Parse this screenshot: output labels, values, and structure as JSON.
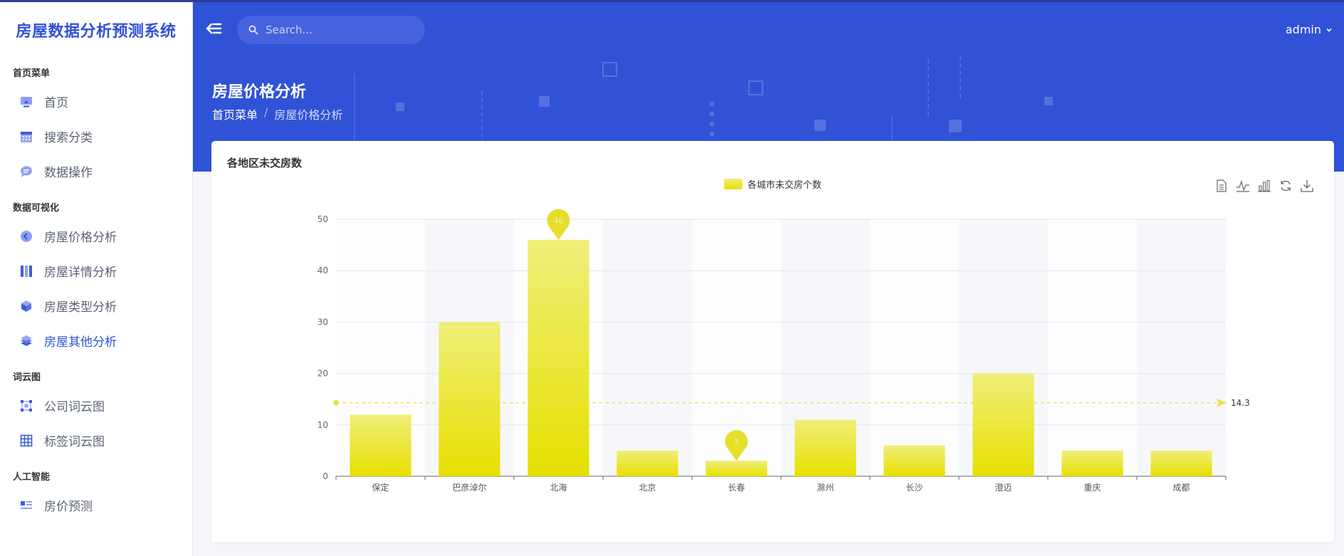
{
  "sidebar": {
    "brand": "房屋数据分析预测系统",
    "sections": [
      {
        "title": "首页菜单",
        "items": [
          {
            "label": "首页",
            "icon": "monitor-icon"
          },
          {
            "label": "搜索分类",
            "icon": "calendar-icon"
          },
          {
            "label": "数据操作",
            "icon": "chat-bubble-icon"
          }
        ]
      },
      {
        "title": "数据可视化",
        "items": [
          {
            "label": "房屋价格分析",
            "icon": "arrow-circle-icon"
          },
          {
            "label": "房屋详情分析",
            "icon": "columns-icon"
          },
          {
            "label": "房屋类型分析",
            "icon": "cube-icon"
          },
          {
            "label": "房屋其他分析",
            "icon": "layers-icon",
            "active": true
          }
        ]
      },
      {
        "title": "词云图",
        "items": [
          {
            "label": "公司词云图",
            "icon": "nodes-icon"
          },
          {
            "label": "标签词云图",
            "icon": "grid-icon"
          }
        ]
      },
      {
        "title": "人工智能",
        "items": [
          {
            "label": "房价预测",
            "icon": "list-icon"
          }
        ]
      }
    ]
  },
  "header": {
    "search_placeholder": "Search...",
    "user": "admin",
    "page_title": "房屋价格分析",
    "breadcrumb": [
      "首页菜单",
      "房屋价格分析"
    ]
  },
  "card": {
    "title": "各地区未交房数",
    "legend": "各城市未交房个数"
  },
  "colors": {
    "accent": "#3052d6",
    "bar_top": "#f0ee7a",
    "bar_bottom": "#e6e000"
  },
  "chart_data": {
    "type": "bar",
    "categories": [
      "保定",
      "巴彦淖尔",
      "北海",
      "北京",
      "长春",
      "滁州",
      "长沙",
      "澄迈",
      "重庆",
      "成都"
    ],
    "series": [
      {
        "name": "各城市未交房个数",
        "values": [
          12,
          30,
          46,
          5,
          3,
          11,
          6,
          20,
          5,
          5
        ]
      }
    ],
    "ylim": [
      0,
      50
    ],
    "yticks": [
      0,
      10,
      20,
      30,
      40,
      50
    ],
    "mark_points": [
      {
        "category": "北海",
        "value": 46,
        "label": "46"
      },
      {
        "category": "长春",
        "value": 3,
        "label": "3"
      }
    ],
    "mark_line": {
      "value": 14.3,
      "label": "14.3"
    },
    "split_area": true,
    "legend_position": "top-center"
  }
}
